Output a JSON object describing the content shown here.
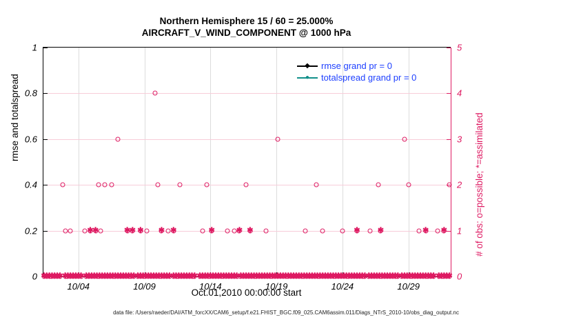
{
  "figure": {
    "title_line1": "Northern Hemisphere 15 / 60 = 25.000%",
    "title_line2": "AIRCRAFT_V_WIND_COMPONENT @ 1000 hPa",
    "footer": "data file: /Users/raeder/DAI/ATM_forcXX/CAM6_setup/f.e21.FHIST_BGC.f09_025.CAM6assim.011/Diags_NTrS_2010-10/obs_diag_output.nc"
  },
  "colors": {
    "obs_pink": "#de1a62",
    "grid_pink": "#f7ccd9",
    "grid_gray": "#dcdcdc",
    "rmse_black": "#000000",
    "spread_teal": "#108f8a",
    "legend_text_blue": "#1e40ff"
  },
  "legend": {
    "items": [
      {
        "label": "rmse grand pr = 0",
        "marker": "diamond",
        "color": "#000000"
      },
      {
        "label": "totalspread grand pr = 0",
        "marker": "circle",
        "color": "#108f8a"
      }
    ]
  },
  "chart_data": {
    "type": "scatter",
    "title": "Northern Hemisphere 15 / 60 = 25.000% — AIRCRAFT_V_WIND_COMPONENT @ 1000 hPa",
    "xlabel": "Oct.01,2010 00:00:00 start",
    "ylabel_left": "rmse and totalspread",
    "ylabel_right": "# of obs: o=possible; *=assimilated",
    "x_domain_days": [
      1.35,
      32.2
    ],
    "ylim_left": [
      0,
      1
    ],
    "ylim_right": [
      0,
      5
    ],
    "grid": true,
    "legend_position": "top-right-inside",
    "x_ticks": [
      {
        "day": 4,
        "label": "10/04"
      },
      {
        "day": 9,
        "label": "10/09"
      },
      {
        "day": 14,
        "label": "10/14"
      },
      {
        "day": 19,
        "label": "10/19"
      },
      {
        "day": 24,
        "label": "10/24"
      },
      {
        "day": 29,
        "label": "10/29"
      }
    ],
    "left_ticks": [
      {
        "v": 0,
        "label": "0"
      },
      {
        "v": 0.2,
        "label": "0.2"
      },
      {
        "v": 0.4,
        "label": "0.4"
      },
      {
        "v": 0.6,
        "label": "0.6"
      },
      {
        "v": 0.8,
        "label": "0.8"
      },
      {
        "v": 1,
        "label": "1"
      }
    ],
    "right_ticks": [
      {
        "v": 0,
        "label": "0"
      },
      {
        "v": 1,
        "label": "1"
      },
      {
        "v": 2,
        "label": "2"
      },
      {
        "v": 3,
        "label": "3"
      },
      {
        "v": 4,
        "label": "4"
      },
      {
        "v": 5,
        "label": "5"
      }
    ],
    "series_note": "rmse and totalspread series have no visible points (grand pr = 0); only obs-count markers are plotted",
    "obs_points": [
      {
        "day": 9.8,
        "count": 4,
        "marker": "o"
      },
      {
        "day": 7.0,
        "count": 3,
        "marker": "o"
      },
      {
        "day": 19.1,
        "count": 3,
        "marker": "o"
      },
      {
        "day": 28.7,
        "count": 3,
        "marker": "o"
      },
      {
        "day": 2.8,
        "count": 2,
        "marker": "o"
      },
      {
        "day": 5.5,
        "count": 2,
        "marker": "o"
      },
      {
        "day": 6.0,
        "count": 2,
        "marker": "o"
      },
      {
        "day": 6.5,
        "count": 2,
        "marker": "o"
      },
      {
        "day": 10.0,
        "count": 2,
        "marker": "o"
      },
      {
        "day": 11.7,
        "count": 2,
        "marker": "o"
      },
      {
        "day": 13.7,
        "count": 2,
        "marker": "o"
      },
      {
        "day": 16.7,
        "count": 2,
        "marker": "o"
      },
      {
        "day": 22.0,
        "count": 2,
        "marker": "o"
      },
      {
        "day": 26.7,
        "count": 2,
        "marker": "o"
      },
      {
        "day": 29.0,
        "count": 2,
        "marker": "o"
      },
      {
        "day": 32.1,
        "count": 2,
        "marker": "o"
      },
      {
        "day": 3.0,
        "count": 1,
        "marker": "o"
      },
      {
        "day": 3.4,
        "count": 1,
        "marker": "o"
      },
      {
        "day": 4.5,
        "count": 1,
        "marker": "o"
      },
      {
        "day": 4.9,
        "count": 1,
        "marker": "ox"
      },
      {
        "day": 5.3,
        "count": 1,
        "marker": "ox"
      },
      {
        "day": 5.7,
        "count": 1,
        "marker": "o"
      },
      {
        "day": 7.7,
        "count": 1,
        "marker": "ox"
      },
      {
        "day": 8.1,
        "count": 1,
        "marker": "ox"
      },
      {
        "day": 8.7,
        "count": 1,
        "marker": "ox"
      },
      {
        "day": 9.2,
        "count": 1,
        "marker": "o"
      },
      {
        "day": 10.3,
        "count": 1,
        "marker": "ox"
      },
      {
        "day": 10.8,
        "count": 1,
        "marker": "o"
      },
      {
        "day": 11.2,
        "count": 1,
        "marker": "ox"
      },
      {
        "day": 13.4,
        "count": 1,
        "marker": "o"
      },
      {
        "day": 14.1,
        "count": 1,
        "marker": "ox"
      },
      {
        "day": 15.3,
        "count": 1,
        "marker": "o"
      },
      {
        "day": 15.8,
        "count": 1,
        "marker": "o"
      },
      {
        "day": 16.2,
        "count": 1,
        "marker": "ox"
      },
      {
        "day": 17.0,
        "count": 1,
        "marker": "ox"
      },
      {
        "day": 18.2,
        "count": 1,
        "marker": "o"
      },
      {
        "day": 21.2,
        "count": 1,
        "marker": "o"
      },
      {
        "day": 22.5,
        "count": 1,
        "marker": "o"
      },
      {
        "day": 24.0,
        "count": 1,
        "marker": "o"
      },
      {
        "day": 25.1,
        "count": 1,
        "marker": "ox"
      },
      {
        "day": 26.1,
        "count": 1,
        "marker": "o"
      },
      {
        "day": 26.9,
        "count": 1,
        "marker": "ox"
      },
      {
        "day": 29.8,
        "count": 1,
        "marker": "o"
      },
      {
        "day": 30.3,
        "count": 1,
        "marker": "ox"
      },
      {
        "day": 31.2,
        "count": 1,
        "marker": "o"
      },
      {
        "day": 31.7,
        "count": 1,
        "marker": "ox"
      }
    ],
    "zero_band": {
      "count": 0,
      "marker": "ox",
      "step_days": 0.2,
      "segments": [
        [
          1.4,
          2.6
        ],
        [
          3.0,
          4.3
        ],
        [
          4.6,
          8.2
        ],
        [
          8.5,
          10.9
        ],
        [
          11.2,
          12.9
        ],
        [
          13.2,
          16.0
        ],
        [
          16.3,
          25.7
        ],
        [
          26.0,
          28.2
        ],
        [
          28.5,
          31.0
        ],
        [
          31.3,
          32.1
        ]
      ]
    }
  }
}
